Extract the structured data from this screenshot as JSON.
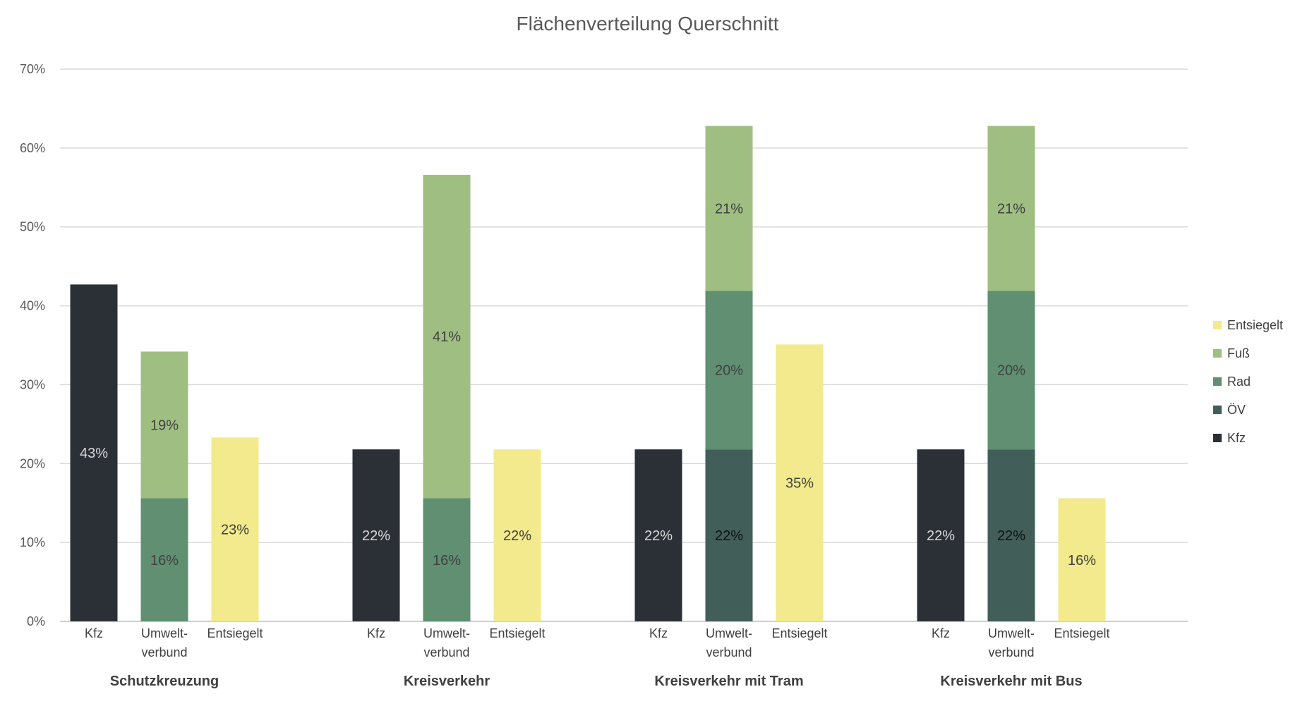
{
  "chart_data": {
    "type": "bar",
    "stacked": true,
    "title": "Flächenverteilung Querschnitt",
    "ylim": [
      0,
      70
    ],
    "yticks": [
      0,
      10,
      20,
      30,
      40,
      50,
      60,
      70
    ],
    "ytick_labels": [
      "0%",
      "10%",
      "20%",
      "30%",
      "40%",
      "50%",
      "60%",
      "70%"
    ],
    "grid": true,
    "legend_position": "right",
    "colors": {
      "Kfz": "#2b2f36",
      "ÖV": "#415e59",
      "Rad": "#608f72",
      "Fuß": "#9fbf82",
      "Entsiegelt": "#f2ea8c"
    },
    "legend": [
      "Entsiegelt",
      "Fuß",
      "Rad",
      "ÖV",
      "Kfz"
    ],
    "groups": [
      {
        "name": "Schutzkreuzung",
        "bars": [
          {
            "label": "Kfz",
            "segments": [
              {
                "series": "Kfz",
                "value": 42.7,
                "label": "43%"
              }
            ]
          },
          {
            "label": "Umwelt-\nverbund",
            "segments": [
              {
                "series": "Rad",
                "value": 15.6,
                "label": "16%"
              },
              {
                "series": "Fuß",
                "value": 18.6,
                "label": "19%"
              }
            ]
          },
          {
            "label": "Entsiegelt",
            "segments": [
              {
                "series": "Entsiegelt",
                "value": 23.3,
                "label": "23%"
              }
            ]
          }
        ]
      },
      {
        "name": "Kreisverkehr",
        "bars": [
          {
            "label": "Kfz",
            "segments": [
              {
                "series": "Kfz",
                "value": 21.8,
                "label": "22%"
              }
            ]
          },
          {
            "label": "Umwelt-\nverbund",
            "segments": [
              {
                "series": "Rad",
                "value": 15.6,
                "label": "16%"
              },
              {
                "series": "Fuß",
                "value": 41.0,
                "label": "41%"
              }
            ]
          },
          {
            "label": "Entsiegelt",
            "segments": [
              {
                "series": "Entsiegelt",
                "value": 21.8,
                "label": "22%"
              }
            ]
          }
        ]
      },
      {
        "name": "Kreisverkehr mit Tram",
        "bars": [
          {
            "label": "Kfz",
            "segments": [
              {
                "series": "Kfz",
                "value": 21.8,
                "label": "22%"
              }
            ]
          },
          {
            "label": "Umwelt-\nverbund",
            "segments": [
              {
                "series": "ÖV",
                "value": 21.8,
                "label": "22%"
              },
              {
                "series": "Rad",
                "value": 20.1,
                "label": "20%"
              },
              {
                "series": "Fuß",
                "value": 20.9,
                "label": "21%"
              }
            ]
          },
          {
            "label": "Entsiegelt",
            "segments": [
              {
                "series": "Entsiegelt",
                "value": 35.1,
                "label": "35%"
              }
            ]
          }
        ]
      },
      {
        "name": "Kreisverkehr mit Bus",
        "bars": [
          {
            "label": "Kfz",
            "segments": [
              {
                "series": "Kfz",
                "value": 21.8,
                "label": "22%"
              }
            ]
          },
          {
            "label": "Umwelt-\nverbund",
            "segments": [
              {
                "series": "ÖV",
                "value": 21.8,
                "label": "22%"
              },
              {
                "series": "Rad",
                "value": 20.1,
                "label": "20%"
              },
              {
                "series": "Fuß",
                "value": 20.9,
                "label": "21%"
              }
            ]
          },
          {
            "label": "Entsiegelt",
            "segments": [
              {
                "series": "Entsiegelt",
                "value": 15.6,
                "label": "16%"
              }
            ]
          }
        ]
      }
    ]
  }
}
